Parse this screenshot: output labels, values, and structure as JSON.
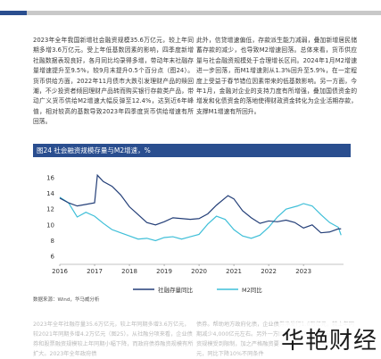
{
  "article": {
    "left_paragraph": "2023年全年我国新增社会融资规模35.6万亿元，较上年同期多增3.6万亿元。受上年低基数因素的影响，四季度新增社融数据表现良好，各月同比均录得多增，带动年末社融存量增速提升至9.5%，较9月末提升0.5个百分点（图24）。货币供给方面，2022年11月债市大跌引发理财产品的赎回潮，不少投资者倾回理财产品转而购买银行存款类产品，带动广义货币供给M2增速大幅反弹至12.4%，达到近6年峰值，相对较高的基数导致2023年四季度货币供给增速有所回落。",
    "right_paragraph": "此外，信贷增速偏低，存款派生能力减弱，叠加新增居民储蓄存款的减少，也导致M2增速回落。总体来看，货币供应量与社会融资规模处于合理增长区间。2024年1月M2增速进一步回落，而M1增速则从1.3%回升至5.9%，在一定程度上受益于春节错位因素带来的低基数影响。另一方面，今年1月，金融对企业的支持力度有所增强，叠加国债资金的增发和化债资金的落地使得财政资金转化为企业活期存款，支撑M1增速有所回升。"
  },
  "figure": {
    "title": "图24 社会融资规模存量与M2增速，%",
    "source": "数据来源：Wind，华马威分析"
  },
  "chart_data": {
    "type": "line",
    "title": "图24 社会融资规模存量与M2增速，%",
    "xlabel": "",
    "ylabel": "",
    "x_ticks": [
      "2016",
      "2017",
      "2018",
      "2019",
      "2020",
      "2021",
      "2022",
      "2023"
    ],
    "y_ticks": [
      6,
      8,
      10,
      12,
      14,
      16
    ],
    "ylim": [
      5,
      17
    ],
    "xlim": [
      2016.0,
      2024.15
    ],
    "grid": false,
    "legend_position": "bottom",
    "colors": {
      "social_financing": "#243f78",
      "m2": "#3fbfd8"
    },
    "series": [
      {
        "name": "社融存量同比",
        "points": [
          [
            2016.0,
            13.4
          ],
          [
            2016.25,
            12.8
          ],
          [
            2016.5,
            12.4
          ],
          [
            2016.75,
            12.6
          ],
          [
            2017.0,
            12.8
          ],
          [
            2017.08,
            16.3
          ],
          [
            2017.25,
            15.5
          ],
          [
            2017.5,
            14.9
          ],
          [
            2017.75,
            13.8
          ],
          [
            2018.0,
            12.3
          ],
          [
            2018.25,
            11.3
          ],
          [
            2018.5,
            10.3
          ],
          [
            2018.75,
            10.0
          ],
          [
            2019.0,
            10.4
          ],
          [
            2019.25,
            10.9
          ],
          [
            2019.5,
            10.8
          ],
          [
            2019.75,
            10.7
          ],
          [
            2020.0,
            10.8
          ],
          [
            2020.25,
            11.4
          ],
          [
            2020.5,
            12.5
          ],
          [
            2020.83,
            13.7
          ],
          [
            2021.0,
            13.3
          ],
          [
            2021.25,
            11.8
          ],
          [
            2021.5,
            10.9
          ],
          [
            2021.75,
            10.2
          ],
          [
            2022.0,
            10.5
          ],
          [
            2022.25,
            10.4
          ],
          [
            2022.5,
            10.6
          ],
          [
            2022.75,
            10.3
          ],
          [
            2023.0,
            9.6
          ],
          [
            2023.25,
            10.0
          ],
          [
            2023.5,
            9.0
          ],
          [
            2023.75,
            9.1
          ],
          [
            2024.0,
            9.5
          ],
          [
            2024.08,
            9.5
          ]
        ]
      },
      {
        "name": "M2同比",
        "points": [
          [
            2016.0,
            13.5
          ],
          [
            2016.25,
            12.8
          ],
          [
            2016.5,
            11.0
          ],
          [
            2016.75,
            11.6
          ],
          [
            2017.0,
            11.1
          ],
          [
            2017.25,
            10.2
          ],
          [
            2017.5,
            9.4
          ],
          [
            2017.75,
            9.0
          ],
          [
            2018.0,
            8.6
          ],
          [
            2018.25,
            8.2
          ],
          [
            2018.5,
            8.3
          ],
          [
            2018.75,
            8.0
          ],
          [
            2019.0,
            8.4
          ],
          [
            2019.25,
            8.5
          ],
          [
            2019.5,
            8.2
          ],
          [
            2019.75,
            8.5
          ],
          [
            2020.0,
            8.8
          ],
          [
            2020.25,
            10.1
          ],
          [
            2020.5,
            11.1
          ],
          [
            2020.75,
            10.7
          ],
          [
            2021.0,
            9.4
          ],
          [
            2021.25,
            8.6
          ],
          [
            2021.5,
            8.3
          ],
          [
            2021.75,
            8.7
          ],
          [
            2022.0,
            9.7
          ],
          [
            2022.25,
            11.0
          ],
          [
            2022.5,
            12.0
          ],
          [
            2022.83,
            12.4
          ],
          [
            2023.0,
            12.7
          ],
          [
            2023.25,
            12.4
          ],
          [
            2023.5,
            11.3
          ],
          [
            2023.75,
            10.3
          ],
          [
            2024.0,
            9.7
          ],
          [
            2024.08,
            8.7
          ]
        ]
      }
    ]
  },
  "faded_bottom": {
    "left": "2023年全年社融存量35.6万亿元，较上年同期多增3.6万亿元，较2021年同期多增4.2万亿元（图25）。从社融分项来看，企业债券和股票融资规模较上年同期小幅下降，而政府债券融资规模有所扩大。2023年全年政府债",
    "right": "债券。帮助地方政府化债，企业债券净发行1.6万亿元，较上年同期减少4,000亿元左右。另外一方面，2023年债。部分城投债融资规模受到限制，加之严格融资要求，2023年全年发行2万亿元，同比下降10%不同条件"
  },
  "watermark": {
    "text": "华艳财经"
  }
}
